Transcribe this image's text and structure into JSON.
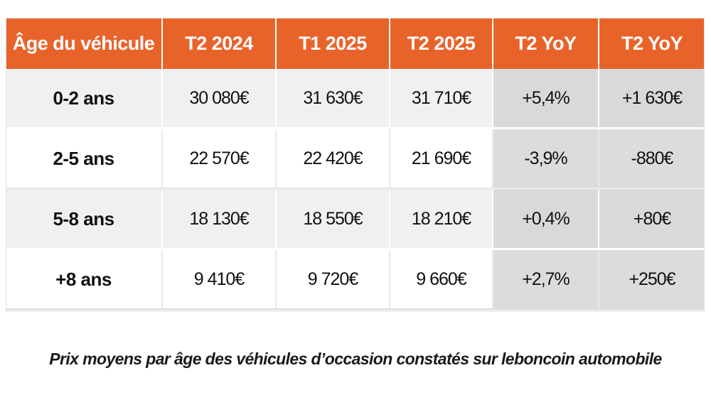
{
  "table": {
    "headers": [
      "Âge du véhicule",
      "T2 2024",
      "T1 2025",
      "T2 2025",
      "T2 YoY",
      "T2 YoY"
    ],
    "rows": [
      {
        "age": "0-2 ans",
        "t2_2024": "30 080€",
        "t1_2025": "31 630€",
        "t2_2025": "31 710€",
        "yoy_pct": "+5,4%",
        "yoy_abs": "+1 630€"
      },
      {
        "age": "2-5 ans",
        "t2_2024": "22 570€",
        "t1_2025": "22 420€",
        "t2_2025": "21 690€",
        "yoy_pct": "-3,9%",
        "yoy_abs": "-880€"
      },
      {
        "age": "5-8 ans",
        "t2_2024": "18 130€",
        "t1_2025": "18 550€",
        "t2_2025": "18 210€",
        "yoy_pct": "+0,4%",
        "yoy_abs": "+80€"
      },
      {
        "age": "+8 ans",
        "t2_2024": "9 410€",
        "t1_2025": "9 720€",
        "t2_2025": "9 660€",
        "yoy_pct": "+2,7%",
        "yoy_abs": "+250€"
      }
    ]
  },
  "caption": "Prix moyens par âge des véhicules d’occasion constatés sur leboncoin automobile",
  "colors": {
    "header_bg": "#e8632a",
    "header_text": "#ffffff",
    "row_shade": "#f0f0f0",
    "yoy_shade": "#d9d9d9"
  }
}
